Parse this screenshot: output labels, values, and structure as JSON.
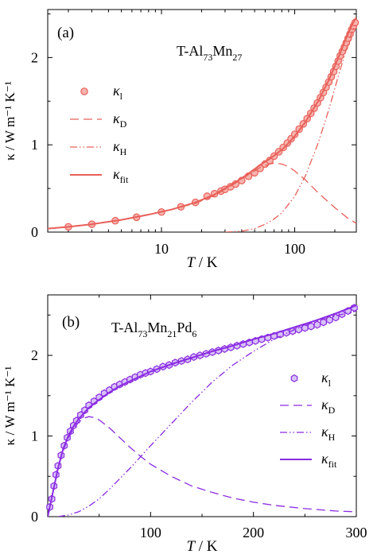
{
  "chart_data": [
    {
      "panel_label": "(a)",
      "type": "line",
      "material": {
        "text": "T-Al",
        "sub1": "73",
        "mid": "Mn",
        "sub2": "27"
      },
      "color": "#e8605a",
      "xscale": "log",
      "xlim": [
        1.4,
        290
      ],
      "ylim": [
        0,
        2.55
      ],
      "xticks": [
        10,
        100
      ],
      "xtick_labels": [
        "10",
        "100"
      ],
      "yticks": [
        0,
        1,
        2
      ],
      "ytick_labels": [
        "0",
        "1",
        "2"
      ],
      "xlabel": {
        "var": "T",
        "unit": " / K"
      },
      "ylabel": "κ / W m⁻¹ K⁻¹",
      "legend_position": "left",
      "legend": [
        {
          "symbol": "κ",
          "sub": "l",
          "style": "marker-circle"
        },
        {
          "symbol": "κ",
          "sub": "D",
          "style": "dash"
        },
        {
          "symbol": "κ",
          "sub": "H",
          "style": "dash-dot-dot"
        },
        {
          "symbol": "κ",
          "sub": "fit",
          "style": "solid"
        }
      ],
      "series": [
        {
          "name": "κl",
          "style": "marker-circle",
          "x": [
            2,
            3,
            4.5,
            6.5,
            10,
            14,
            18,
            22,
            25,
            28,
            30,
            33,
            36,
            40,
            45,
            50,
            55,
            60,
            65,
            70,
            76,
            82,
            88,
            94,
            100,
            108,
            116,
            124,
            132,
            140,
            148,
            156,
            164,
            172,
            180,
            188,
            196,
            204,
            212,
            220,
            228,
            236,
            244,
            252,
            260,
            268,
            276,
            284,
            292
          ],
          "y": [
            0.06,
            0.09,
            0.13,
            0.17,
            0.23,
            0.29,
            0.34,
            0.41,
            0.44,
            0.47,
            0.49,
            0.52,
            0.55,
            0.59,
            0.64,
            0.68,
            0.73,
            0.78,
            0.82,
            0.87,
            0.92,
            0.97,
            1.02,
            1.07,
            1.12,
            1.18,
            1.24,
            1.3,
            1.36,
            1.42,
            1.48,
            1.54,
            1.6,
            1.66,
            1.72,
            1.78,
            1.84,
            1.9,
            1.96,
            2.02,
            2.07,
            2.12,
            2.17,
            2.22,
            2.27,
            2.32,
            2.36,
            2.4,
            2.45
          ]
        },
        {
          "name": "κD",
          "style": "dash",
          "x": [
            1.4,
            2,
            3,
            5,
            8,
            12,
            18,
            25,
            35,
            45,
            55,
            65,
            70,
            80,
            90,
            100,
            120,
            150,
            200,
            250,
            290
          ],
          "y": [
            0.04,
            0.06,
            0.09,
            0.14,
            0.2,
            0.26,
            0.33,
            0.42,
            0.55,
            0.66,
            0.74,
            0.78,
            0.79,
            0.78,
            0.75,
            0.7,
            0.6,
            0.45,
            0.28,
            0.16,
            0.1
          ]
        },
        {
          "name": "κH",
          "style": "dash-dot-dot",
          "x": [
            30,
            40,
            50,
            60,
            70,
            80,
            100,
            120,
            150,
            180,
            210,
            240,
            270,
            290
          ],
          "y": [
            0,
            0.01,
            0.04,
            0.09,
            0.15,
            0.22,
            0.41,
            0.64,
            1.02,
            1.4,
            1.76,
            2.06,
            2.3,
            2.4
          ]
        },
        {
          "name": "κfit",
          "style": "solid",
          "x": [
            1.4,
            2,
            3,
            5,
            8,
            12,
            18,
            25,
            35,
            45,
            55,
            65,
            75,
            85,
            100,
            120,
            150,
            180,
            210,
            240,
            270,
            290
          ],
          "y": [
            0.04,
            0.06,
            0.09,
            0.14,
            0.2,
            0.26,
            0.34,
            0.43,
            0.56,
            0.67,
            0.77,
            0.84,
            0.91,
            0.98,
            1.1,
            1.26,
            1.5,
            1.74,
            1.98,
            2.2,
            2.38,
            2.46
          ]
        }
      ]
    },
    {
      "panel_label": "(b)",
      "type": "line",
      "material": {
        "text": "T-Al",
        "sub1": "73",
        "mid": "Mn",
        "sub2": "21",
        "mid2": "Pd",
        "sub3": "6"
      },
      "color": "#8a2be2",
      "xscale": "linear",
      "xlim": [
        0,
        300
      ],
      "ylim": [
        0,
        2.75
      ],
      "xticks": [
        100,
        200,
        300
      ],
      "xtick_labels": [
        "100",
        "200",
        "300"
      ],
      "yticks": [
        0,
        1,
        2
      ],
      "ytick_labels": [
        "0",
        "1",
        "2"
      ],
      "xlabel": {
        "var": "T",
        "unit": " / K"
      },
      "ylabel": "κ / W m⁻¹ K⁻¹",
      "legend_position": "right",
      "legend": [
        {
          "symbol": "κ",
          "sub": "l",
          "style": "marker-hexagon"
        },
        {
          "symbol": "κ",
          "sub": "D",
          "style": "dash"
        },
        {
          "symbol": "κ",
          "sub": "H",
          "style": "dash-dot-dot"
        },
        {
          "symbol": "κ",
          "sub": "fit",
          "style": "solid"
        }
      ],
      "series": [
        {
          "name": "κl",
          "style": "marker-hexagon",
          "x": [
            2,
            4,
            6,
            8,
            10,
            13,
            16,
            19,
            22,
            25,
            28,
            32,
            36,
            40,
            45,
            50,
            55,
            60,
            65,
            70,
            75,
            80,
            85,
            90,
            95,
            100,
            106,
            112,
            118,
            124,
            130,
            136,
            142,
            148,
            154,
            160,
            166,
            172,
            178,
            184,
            190,
            196,
            202,
            208,
            214,
            220,
            226,
            232,
            238,
            244,
            250,
            256,
            262,
            268,
            274,
            280,
            286,
            292,
            298
          ],
          "y": [
            0.12,
            0.22,
            0.38,
            0.52,
            0.63,
            0.76,
            0.88,
            0.98,
            1.06,
            1.13,
            1.19,
            1.26,
            1.32,
            1.38,
            1.43,
            1.48,
            1.53,
            1.57,
            1.61,
            1.64,
            1.67,
            1.7,
            1.73,
            1.76,
            1.78,
            1.8,
            1.83,
            1.86,
            1.88,
            1.91,
            1.93,
            1.95,
            1.98,
            2.0,
            2.02,
            2.04,
            2.06,
            2.08,
            2.1,
            2.12,
            2.14,
            2.16,
            2.18,
            2.2,
            2.22,
            2.24,
            2.26,
            2.28,
            2.3,
            2.32,
            2.34,
            2.36,
            2.38,
            2.41,
            2.44,
            2.47,
            2.51,
            2.55,
            2.59
          ]
        },
        {
          "name": "κD",
          "style": "dash",
          "x": [
            0,
            5,
            10,
            15,
            20,
            25,
            30,
            35,
            40,
            45,
            50,
            60,
            70,
            80,
            90,
            100,
            120,
            140,
            160,
            180,
            200,
            220,
            250,
            280,
            300
          ],
          "y": [
            0,
            0.3,
            0.6,
            0.82,
            0.98,
            1.09,
            1.17,
            1.22,
            1.24,
            1.23,
            1.2,
            1.1,
            0.98,
            0.86,
            0.75,
            0.65,
            0.5,
            0.38,
            0.3,
            0.23,
            0.18,
            0.14,
            0.1,
            0.07,
            0.06
          ]
        },
        {
          "name": "κH",
          "style": "dash-dot-dot",
          "x": [
            10,
            20,
            30,
            40,
            50,
            60,
            70,
            80,
            90,
            100,
            120,
            140,
            160,
            180,
            200,
            220,
            240,
            260,
            280,
            300
          ],
          "y": [
            0,
            0.02,
            0.06,
            0.13,
            0.22,
            0.34,
            0.47,
            0.6,
            0.74,
            0.88,
            1.15,
            1.42,
            1.67,
            1.88,
            2.05,
            2.2,
            2.32,
            2.42,
            2.49,
            2.55
          ]
        },
        {
          "name": "κfit",
          "style": "solid",
          "x": [
            0,
            2,
            5,
            10,
            15,
            20,
            25,
            30,
            40,
            50,
            60,
            70,
            80,
            90,
            100,
            120,
            140,
            160,
            180,
            200,
            220,
            240,
            260,
            280,
            300
          ],
          "y": [
            0,
            0.12,
            0.3,
            0.6,
            0.84,
            1.0,
            1.12,
            1.21,
            1.35,
            1.45,
            1.54,
            1.62,
            1.68,
            1.74,
            1.8,
            1.89,
            1.97,
            2.05,
            2.12,
            2.2,
            2.27,
            2.35,
            2.43,
            2.52,
            2.62
          ]
        }
      ]
    }
  ]
}
